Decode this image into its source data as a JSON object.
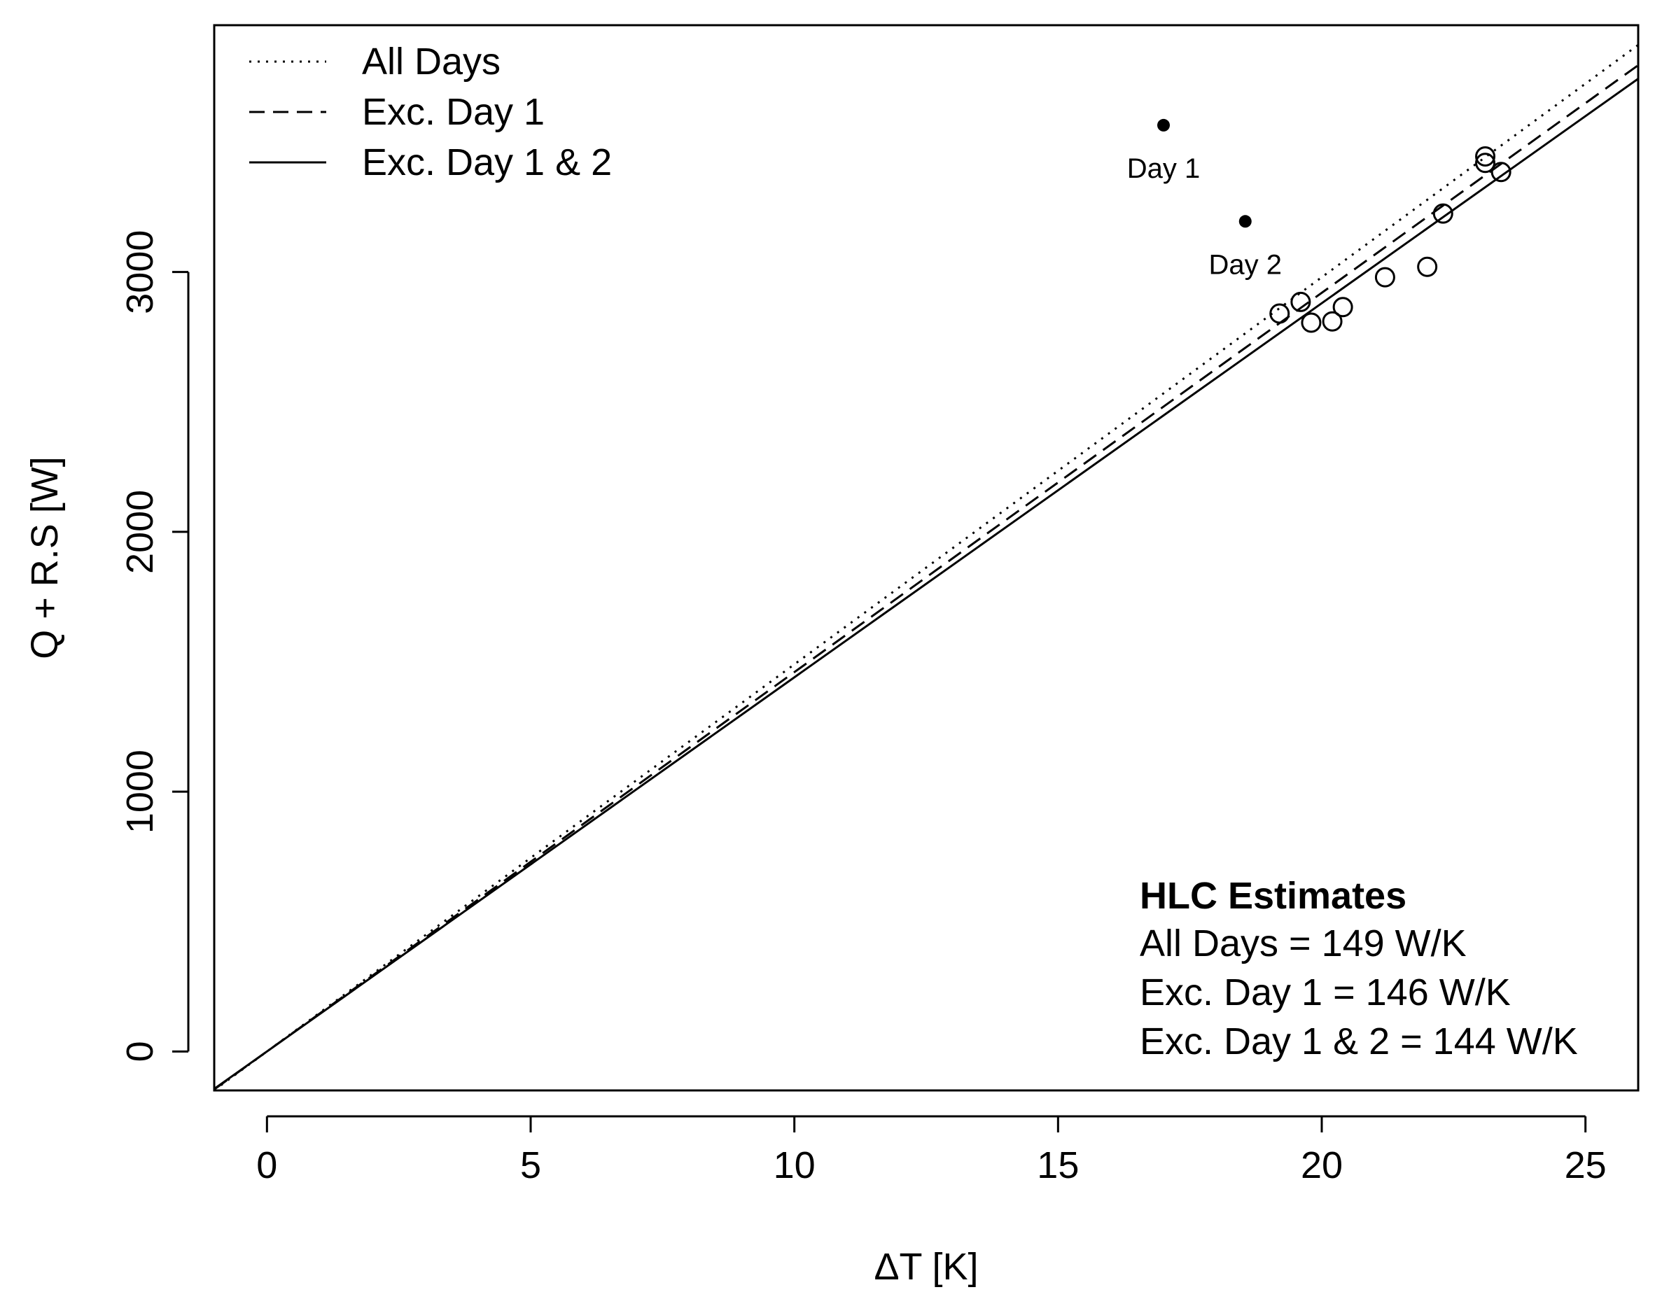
{
  "chart_data": {
    "type": "scatter",
    "xlabel": "ΔT [K]",
    "ylabel": "Q + R.S [W]",
    "xlim": [
      -1,
      26
    ],
    "ylim": [
      -150,
      3950
    ],
    "x_ticks": [
      0,
      5,
      10,
      15,
      20,
      25
    ],
    "x_tick_labels": [
      "0",
      "5",
      "10",
      "15",
      "20",
      "25"
    ],
    "y_ticks": [
      0,
      1000,
      2000,
      3000
    ],
    "y_tick_labels": [
      "0",
      "1000",
      "2000",
      "3000"
    ],
    "grid": false,
    "legend": {
      "position": "top-left",
      "entries": [
        {
          "label": "All Days",
          "style": "dotted"
        },
        {
          "label": "Exc. Day 1",
          "style": "dashed"
        },
        {
          "label": "Exc. Day 1 & 2",
          "style": "solid"
        }
      ]
    },
    "lines": [
      {
        "name": "All Days",
        "slope": 149,
        "style": "dotted"
      },
      {
        "name": "Exc. Day 1",
        "slope": 146,
        "style": "dashed"
      },
      {
        "name": "Exc. Day 1 & 2",
        "slope": 144,
        "style": "solid"
      }
    ],
    "highlighted_points": [
      {
        "x": 17.0,
        "y": 3565,
        "label": "Day 1"
      },
      {
        "x": 18.55,
        "y": 3195,
        "label": "Day 2"
      }
    ],
    "points": [
      {
        "x": 19.2,
        "y": 2840
      },
      {
        "x": 19.6,
        "y": 2885
      },
      {
        "x": 19.8,
        "y": 2805
      },
      {
        "x": 20.2,
        "y": 2810
      },
      {
        "x": 20.4,
        "y": 2865
      },
      {
        "x": 21.2,
        "y": 2980
      },
      {
        "x": 22.0,
        "y": 3020
      },
      {
        "x": 22.3,
        "y": 3225
      },
      {
        "x": 23.1,
        "y": 3445
      },
      {
        "x": 23.1,
        "y": 3420
      },
      {
        "x": 23.4,
        "y": 3385
      }
    ],
    "hlc_box": {
      "title": "HLC Estimates",
      "position": "bottom-right",
      "lines": [
        "All Days = 149 W/K",
        "Exc. Day 1 = 146 W/K",
        "Exc. Day 1 & 2 = 144 W/K"
      ]
    }
  }
}
